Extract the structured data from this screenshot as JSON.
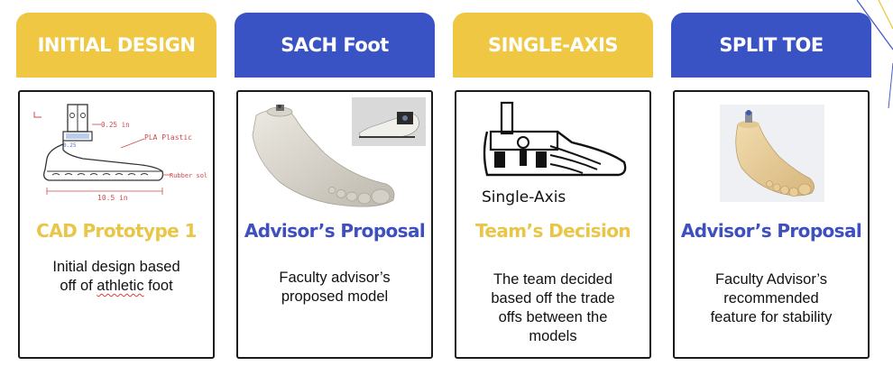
{
  "colors": {
    "yellow": "#efc743",
    "blue": "#3a53c4",
    "subtitle_yellow": "#e9c548",
    "subtitle_blue": "#3e4fbf"
  },
  "columns": [
    {
      "header": "INITIAL DESIGN",
      "subtitle": "CAD Prototype 1",
      "description_line1": "Initial design based",
      "description_line2_prefix": "off of ",
      "description_line2_flagged": "athletic",
      "description_line2_suffix": " foot",
      "sketch_labels": {
        "dim_top": "0.25 in",
        "dim_small": "0.25",
        "material": "PLA Plastic",
        "sole": "Rubber sole",
        "length": "10.5 in"
      }
    },
    {
      "header": "SACH Foot",
      "subtitle": "Advisor’s Proposal",
      "description": [
        "Faculty advisor’s",
        "proposed model"
      ]
    },
    {
      "header": "SINGLE-AXIS",
      "subtitle": "Team’s Decision",
      "image_caption": "Single-Axis",
      "description": [
        "The team decided",
        "based off the trade",
        "offs between the",
        "models"
      ]
    },
    {
      "header": "SPLIT TOE",
      "subtitle": "Advisor’s Proposal",
      "description": [
        "Faculty Advisor’s",
        "recommended",
        "feature for stability"
      ]
    }
  ]
}
